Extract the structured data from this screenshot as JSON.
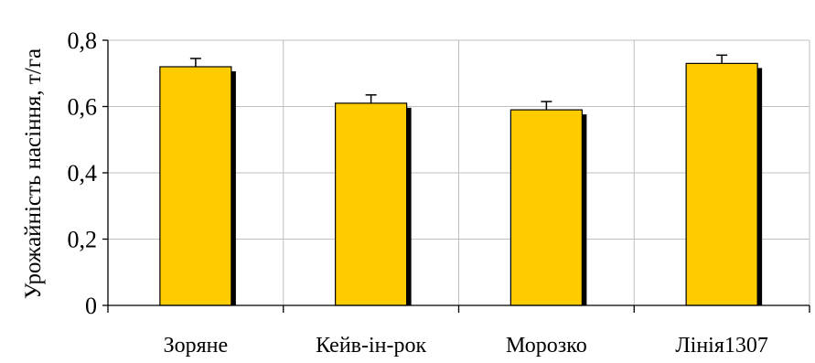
{
  "chart_data": {
    "type": "bar",
    "categories": [
      "Зоряне",
      "Кейв-ін-рок",
      "Морозко",
      "Лінія1307"
    ],
    "values": [
      0.72,
      0.61,
      0.59,
      0.73
    ],
    "errors": [
      0.025,
      0.025,
      0.025,
      0.025
    ],
    "title": "",
    "xlabel": "",
    "ylabel": "Урожайність насіння, т/га",
    "ylim": [
      0,
      0.8
    ],
    "yticks": [
      0,
      0.2,
      0.4,
      0.6,
      0.8
    ],
    "ytick_labels": [
      "0",
      "0,2",
      "0,4",
      "0,6",
      "0,8"
    ],
    "grid": true,
    "bar_color": "#FFCC00",
    "shadow_color": "#000000",
    "grid_color": "#BFBFBF"
  }
}
